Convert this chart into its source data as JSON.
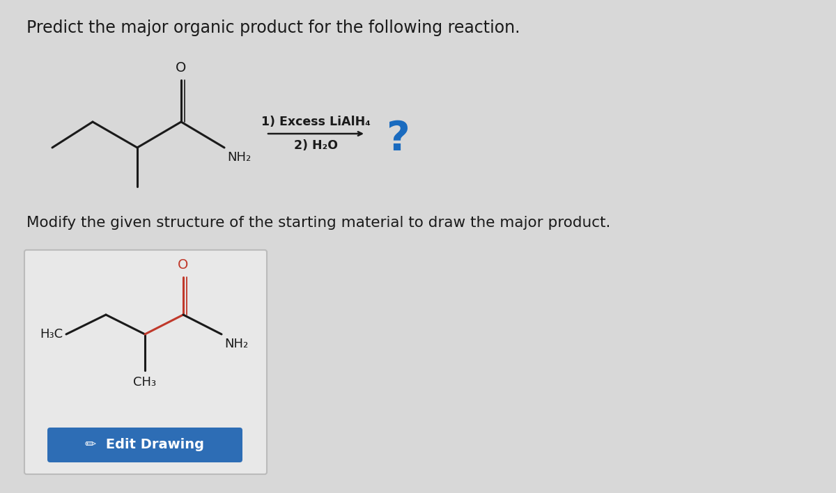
{
  "bg_color": "#d8d8d8",
  "box_color": "#e8e8e8",
  "box_edge_color": "#bbbbbb",
  "black": "#1a1a1a",
  "red": "#c0392b",
  "blue_q": "#1a6bbf",
  "blue_btn": "#2d6db5",
  "title": "Predict the major organic product for the following reaction.",
  "subtitle": "Modify the given structure of the starting material to draw the major product.",
  "reagents_line1": "1) Excess LiAlH₄",
  "reagents_line2": "2) H₂O",
  "question_mark": "?",
  "nh2_label": "NH₂",
  "h3c_label": "H₃C",
  "ch3_label": "CH₃",
  "o_label": "O",
  "edit_button_text": "•  Edit Drawing",
  "title_fontsize": 17,
  "subtitle_fontsize": 15.5,
  "reagent_fontsize": 12.5,
  "mol_label_fontsize": 13,
  "o_fontsize": 14,
  "edit_fontsize": 14,
  "qmark_fontsize": 42
}
